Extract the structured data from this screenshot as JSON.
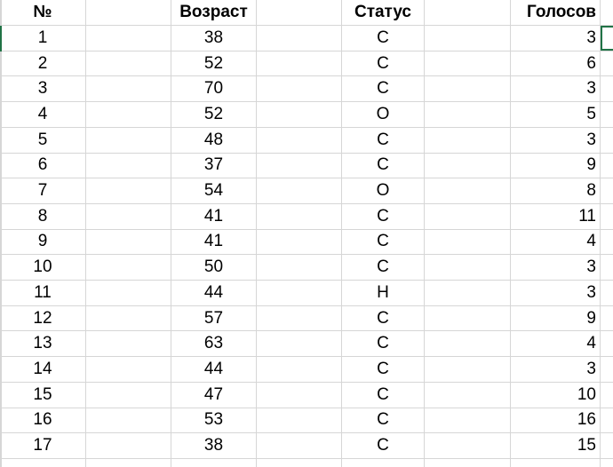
{
  "colors": {
    "selection": "#217346",
    "gridline": "#d6d6d6",
    "background": "#ffffff",
    "text": "#000000"
  },
  "columns": [
    {
      "id": "num",
      "label": "№"
    },
    {
      "id": "age",
      "label": "Возраст"
    },
    {
      "id": "status",
      "label": "Статус"
    },
    {
      "id": "votes",
      "label": "Голосов"
    }
  ],
  "rows": [
    {
      "num": 1,
      "age": 38,
      "status": "С",
      "votes": 3
    },
    {
      "num": 2,
      "age": 52,
      "status": "С",
      "votes": 6
    },
    {
      "num": 3,
      "age": 70,
      "status": "С",
      "votes": 3
    },
    {
      "num": 4,
      "age": 52,
      "status": "О",
      "votes": 5
    },
    {
      "num": 5,
      "age": 48,
      "status": "С",
      "votes": 3
    },
    {
      "num": 6,
      "age": 37,
      "status": "С",
      "votes": 9
    },
    {
      "num": 7,
      "age": 54,
      "status": "О",
      "votes": 8
    },
    {
      "num": 8,
      "age": 41,
      "status": "С",
      "votes": 11
    },
    {
      "num": 9,
      "age": 41,
      "status": "С",
      "votes": 4
    },
    {
      "num": 10,
      "age": 50,
      "status": "С",
      "votes": 3
    },
    {
      "num": 11,
      "age": 44,
      "status": "Н",
      "votes": 3
    },
    {
      "num": 12,
      "age": 57,
      "status": "С",
      "votes": 9
    },
    {
      "num": 13,
      "age": 63,
      "status": "С",
      "votes": 4
    },
    {
      "num": 14,
      "age": 44,
      "status": "С",
      "votes": 3
    },
    {
      "num": 15,
      "age": 47,
      "status": "С",
      "votes": 10
    },
    {
      "num": 16,
      "age": 53,
      "status": "С",
      "votes": 16
    },
    {
      "num": 17,
      "age": 38,
      "status": "С",
      "votes": 15
    }
  ],
  "selection": {
    "active_row": 1,
    "position": "cell-right-of-votes-column"
  }
}
